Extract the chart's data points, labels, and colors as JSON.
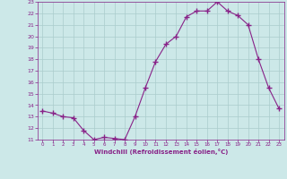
{
  "x": [
    0,
    1,
    2,
    3,
    4,
    5,
    6,
    7,
    8,
    9,
    10,
    11,
    12,
    13,
    14,
    15,
    16,
    17,
    18,
    19,
    20,
    21,
    22,
    23
  ],
  "y": [
    13.5,
    13.3,
    13.0,
    12.9,
    11.8,
    11.0,
    11.2,
    11.1,
    11.0,
    13.0,
    15.5,
    17.8,
    19.3,
    20.0,
    21.7,
    22.2,
    22.2,
    23.0,
    22.2,
    21.8,
    21.0,
    18.0,
    15.5,
    13.7
  ],
  "line_color": "#882288",
  "marker": "+",
  "marker_size": 4,
  "marker_lw": 1.0,
  "bg_color": "#cce8e8",
  "grid_color": "#aacccc",
  "axis_label_color": "#882288",
  "tick_label_color": "#882288",
  "xlabel": "Windchill (Refroidissement éolien,°C)",
  "ylim": [
    11,
    23
  ],
  "xlim": [
    -0.5,
    23.5
  ],
  "yticks": [
    11,
    12,
    13,
    14,
    15,
    16,
    17,
    18,
    19,
    20,
    21,
    22,
    23
  ],
  "xticks": [
    0,
    1,
    2,
    3,
    4,
    5,
    6,
    7,
    8,
    9,
    10,
    11,
    12,
    13,
    14,
    15,
    16,
    17,
    18,
    19,
    20,
    21,
    22,
    23
  ]
}
